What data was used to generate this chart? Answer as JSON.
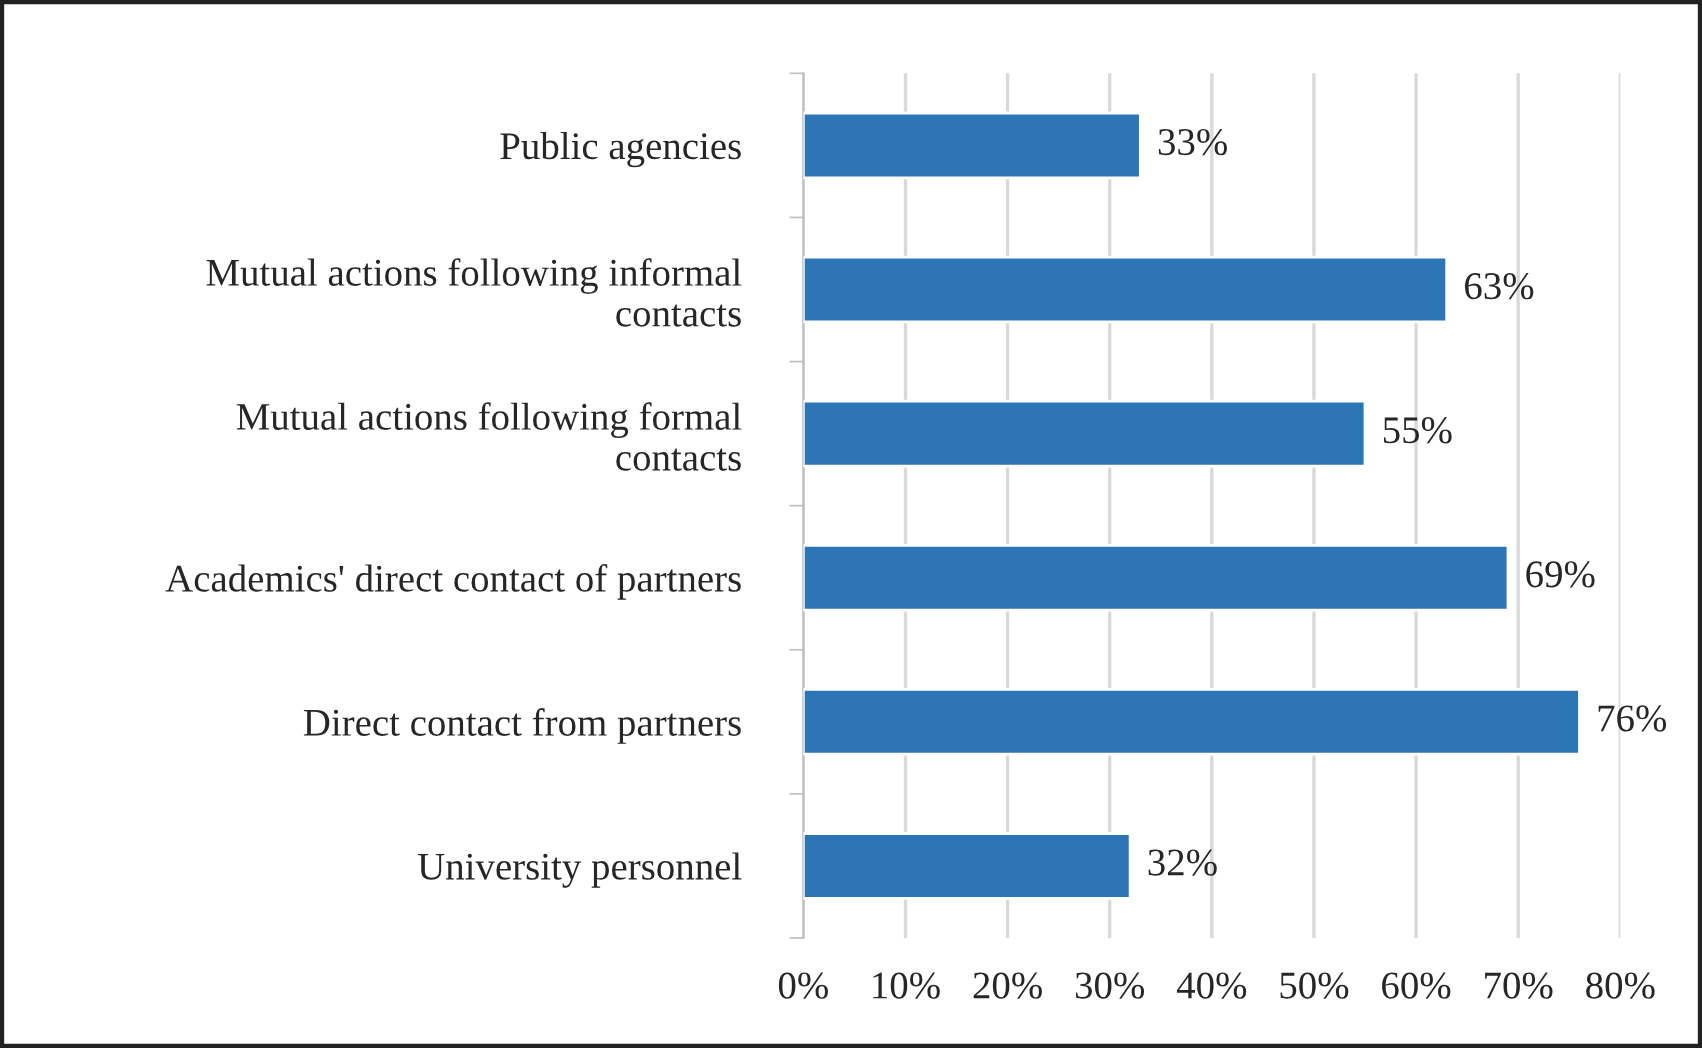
{
  "chart_data": {
    "type": "bar",
    "orientation": "horizontal",
    "categories": [
      "Public agencies",
      "Mutual actions following informal\ncontacts",
      "Mutual actions following formal\ncontacts",
      "Academics' direct contact of partners",
      "Direct contact from partners",
      "University personnel"
    ],
    "values": [
      33,
      63,
      55,
      69,
      76,
      32
    ],
    "value_labels": [
      "33%",
      "63%",
      "55%",
      "69%",
      "76%",
      "32%"
    ],
    "color": "#2e75b6",
    "xlim": [
      0,
      80
    ],
    "xticks": [
      {
        "value": 0,
        "label": "0%"
      },
      {
        "value": 10,
        "label": "10%"
      },
      {
        "value": 20,
        "label": "20%"
      },
      {
        "value": 30,
        "label": "30%"
      },
      {
        "value": 40,
        "label": "40%"
      },
      {
        "value": 50,
        "label": "50%"
      },
      {
        "value": 60,
        "label": "60%"
      },
      {
        "value": 70,
        "label": "70%"
      },
      {
        "value": 80,
        "label": "80%"
      }
    ],
    "grid": "x",
    "legend": false
  }
}
